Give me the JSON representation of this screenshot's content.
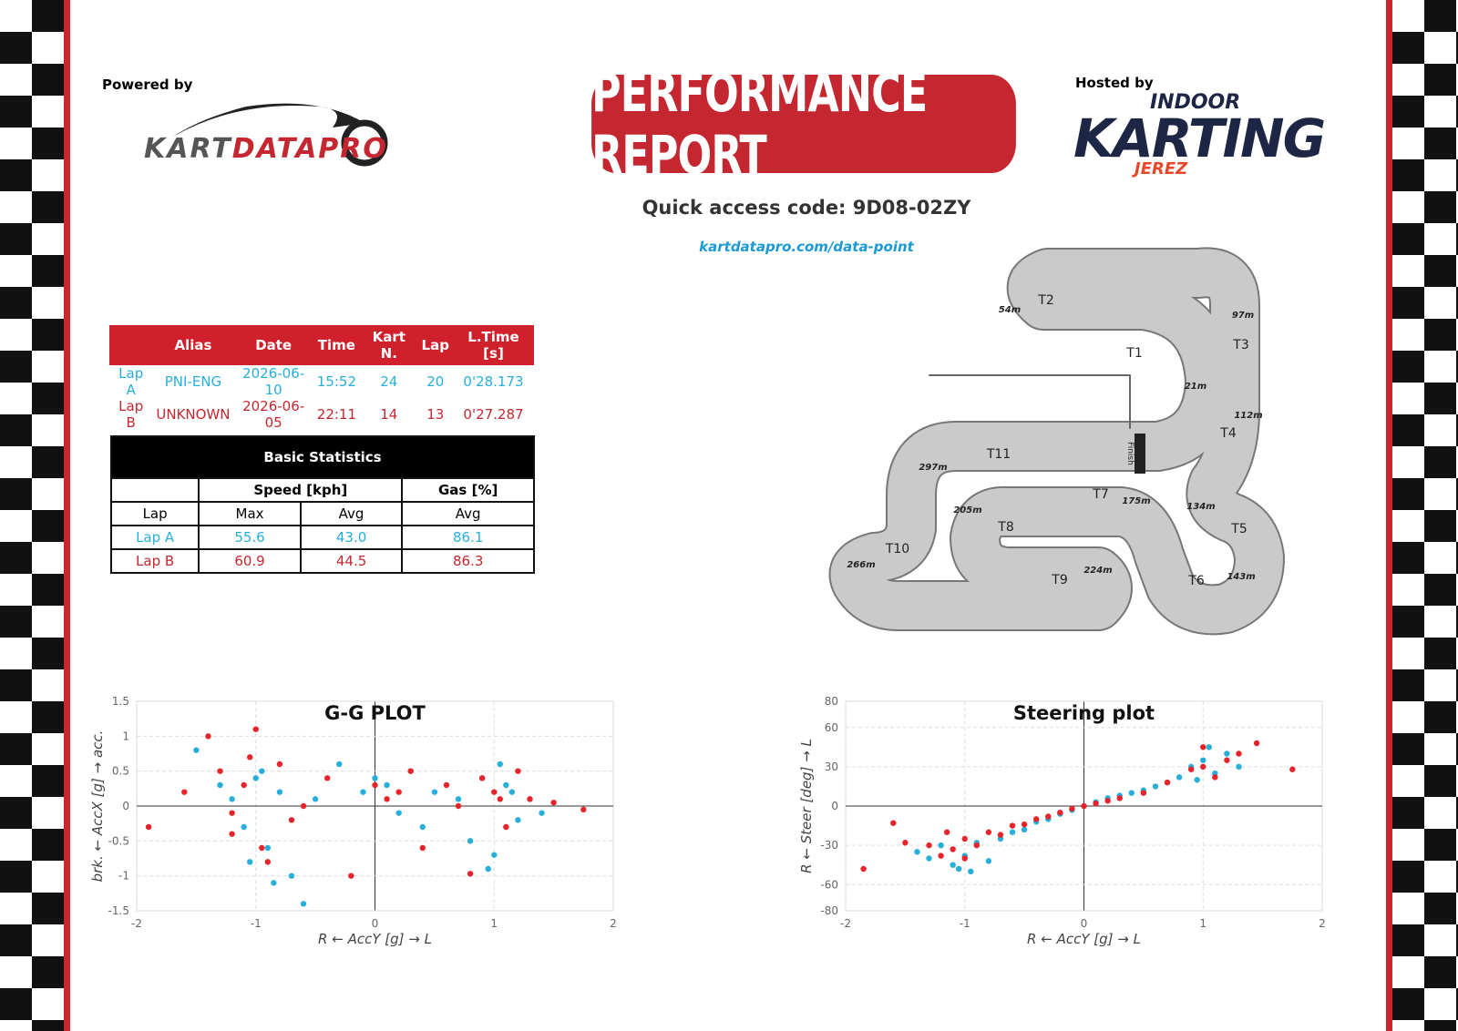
{
  "header": {
    "powered_by": "Powered by",
    "logo_part1": "KART",
    "logo_part2": "DATAPRO",
    "title": "PERFORMANCE REPORT",
    "hosted_by": "Hosted by",
    "host_top": "INDOOR",
    "host_main": "KARTING",
    "host_bottom": "JEREZ",
    "access_code": "Quick access code: 9D08-02ZY",
    "link": "kartdatapro.com/data-point"
  },
  "laps_table": {
    "columns": [
      "Alias",
      "Date",
      "Time",
      "Kart N.",
      "Lap",
      "L.Time [s]"
    ],
    "rows": [
      [
        "Lap A",
        "PNI-ENG",
        "2026-06-10",
        "15:52",
        "24",
        "20",
        "0'28.173"
      ],
      [
        "Lap B",
        "UNKNOWN",
        "2026-06-05",
        "22:11",
        "14",
        "13",
        "0'27.287"
      ]
    ]
  },
  "stats_table": {
    "title": "Basic Statistics",
    "groups": [
      "Speed [kph]",
      "Gas [%]"
    ],
    "columns": [
      "Lap",
      "Max",
      "Avg",
      "Avg"
    ],
    "rows": [
      [
        "Lap A",
        "55.6",
        "43.0",
        "86.1"
      ],
      [
        "Lap B",
        "60.9",
        "44.5",
        "86.3"
      ]
    ]
  },
  "track": {
    "turns": [
      "T1",
      "T2",
      "T3",
      "T4",
      "T5",
      "T6",
      "T7",
      "T8",
      "T9",
      "T10",
      "T11"
    ],
    "distances": [
      "21m",
      "54m",
      "97m",
      "112m",
      "134m",
      "143m",
      "175m",
      "205m",
      "224m",
      "266m",
      "297m"
    ],
    "finish": "Finish"
  },
  "chart_data": [
    {
      "type": "scatter",
      "title": "G-G PLOT",
      "x_label": "R ← AccY [g] → L",
      "y_label": "brk. ← AccX [g] → acc.",
      "xlim": [
        -2,
        2
      ],
      "xticks": [
        -2,
        -1,
        0,
        1,
        2
      ],
      "ylim": [
        -1.5,
        1.5
      ],
      "yticks": [
        -1.5,
        -1,
        -0.5,
        0,
        0.5,
        1,
        1.5
      ],
      "grid": true,
      "series": [
        {
          "color": "#27aedb",
          "x": [
            -1.2,
            -1.1,
            -1.0,
            -0.9,
            -0.8,
            -1.05,
            -0.95,
            -1.3,
            -0.7,
            -0.5,
            -0.3,
            -0.1,
            0.0,
            0.1,
            0.2,
            0.3,
            0.5,
            0.7,
            0.8,
            0.9,
            1.0,
            1.1,
            1.2,
            1.3,
            0.95,
            1.05,
            -1.5,
            -0.6,
            0.4,
            1.4,
            -0.85,
            1.15
          ],
          "values": [
            0.1,
            -0.3,
            0.4,
            -0.6,
            0.2,
            -0.8,
            0.5,
            0.3,
            -1.0,
            0.1,
            0.6,
            0.2,
            0.4,
            0.3,
            -0.1,
            0.5,
            0.2,
            0.1,
            -0.5,
            0.4,
            -0.7,
            0.3,
            -0.2,
            0.1,
            -0.9,
            0.6,
            0.8,
            -1.4,
            -0.3,
            -0.1,
            -1.1,
            0.2
          ]
        },
        {
          "color": "#e8242a",
          "x": [
            -1.9,
            -1.6,
            -1.4,
            -1.3,
            -1.2,
            -1.1,
            -1.0,
            -0.9,
            -0.8,
            -0.7,
            -0.6,
            -0.4,
            -0.2,
            0.0,
            0.1,
            0.2,
            0.3,
            0.4,
            0.6,
            0.7,
            0.8,
            0.9,
            1.0,
            1.1,
            1.2,
            1.3,
            1.5,
            1.75,
            -0.95,
            -1.05,
            1.05,
            -1.2
          ],
          "values": [
            -0.3,
            0.2,
            1.0,
            0.5,
            -0.4,
            0.3,
            1.1,
            -0.8,
            0.6,
            -0.2,
            0.0,
            0.4,
            -1.0,
            0.3,
            0.1,
            0.2,
            0.5,
            -0.6,
            0.3,
            0.0,
            -0.97,
            0.4,
            0.2,
            -0.3,
            0.5,
            0.1,
            0.05,
            -0.05,
            -0.6,
            0.7,
            0.1,
            -0.1
          ]
        }
      ]
    },
    {
      "type": "scatter",
      "title": "Steering plot",
      "x_label": "R ← AccY [g] → L",
      "y_label": "R ← Steer [deg] → L",
      "xlim": [
        -2,
        2
      ],
      "xticks": [
        -2,
        -1,
        0,
        1,
        2
      ],
      "ylim": [
        -80,
        80
      ],
      "yticks": [
        -80,
        -60,
        -30,
        0,
        30,
        60,
        80
      ],
      "grid": true,
      "series": [
        {
          "color": "#27aedb",
          "x": [
            -1.4,
            -1.3,
            -1.2,
            -1.1,
            -1.0,
            -0.9,
            -0.8,
            -0.7,
            -0.6,
            -0.5,
            -0.4,
            -0.3,
            -0.2,
            -0.1,
            0.0,
            0.1,
            0.2,
            0.3,
            0.4,
            0.5,
            0.6,
            0.7,
            0.8,
            0.9,
            1.0,
            1.1,
            1.2,
            1.3,
            -1.05,
            -0.95,
            1.05,
            0.95
          ],
          "values": [
            -35,
            -40,
            -30,
            -45,
            -38,
            -28,
            -42,
            -25,
            -20,
            -18,
            -12,
            -10,
            -6,
            -3,
            0,
            3,
            6,
            8,
            10,
            12,
            15,
            18,
            22,
            30,
            35,
            25,
            40,
            30,
            -48,
            -50,
            45,
            20
          ]
        },
        {
          "color": "#e8242a",
          "x": [
            -1.85,
            -1.6,
            -1.5,
            -1.3,
            -1.2,
            -1.1,
            -1.0,
            -0.9,
            -0.8,
            -0.7,
            -0.6,
            -0.5,
            -0.4,
            -0.3,
            -0.2,
            -0.1,
            0.0,
            0.1,
            0.2,
            0.3,
            0.5,
            0.7,
            0.9,
            1.0,
            1.1,
            1.2,
            1.3,
            1.45,
            1.75,
            -1.0,
            1.0,
            -1.15
          ],
          "values": [
            -48,
            -13,
            -28,
            -30,
            -38,
            -33,
            -25,
            -30,
            -20,
            -22,
            -15,
            -14,
            -10,
            -8,
            -5,
            -2,
            0,
            2,
            4,
            6,
            10,
            18,
            28,
            30,
            22,
            35,
            40,
            48,
            28,
            -40,
            45,
            -20
          ]
        }
      ]
    }
  ]
}
